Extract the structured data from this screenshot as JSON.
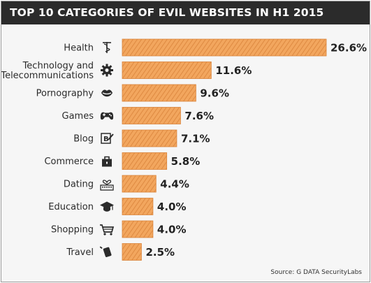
{
  "title": "TOP 10 CATEGORIES OF EVIL WEBSITES IN H1 2015",
  "source": "Source: G DATA SecurityLabs",
  "colors": {
    "bar": "#f2a65e",
    "hatch": "#d9833a",
    "icon": "#2b2b2b",
    "title_bg": "#2b2b2b"
  },
  "chart_data": {
    "type": "bar",
    "orientation": "horizontal",
    "title": "TOP 10 CATEGORIES OF EVIL WEBSITES IN H1 2015",
    "categories": [
      "Health",
      "Technology and Telecommunications",
      "Pornography",
      "Games",
      "Blog",
      "Commerce",
      "Dating",
      "Education",
      "Shopping",
      "Travel"
    ],
    "category_lines": [
      [
        "Health"
      ],
      [
        "Technology and",
        "Telecommunications"
      ],
      [
        "Pornography"
      ],
      [
        "Games"
      ],
      [
        "Blog"
      ],
      [
        "Commerce"
      ],
      [
        "Dating"
      ],
      [
        "Education"
      ],
      [
        "Shopping"
      ],
      [
        "Travel"
      ]
    ],
    "values": [
      26.6,
      11.6,
      9.6,
      7.6,
      7.1,
      5.8,
      4.4,
      4.0,
      4.0,
      2.5
    ],
    "value_labels": [
      "26.6%",
      "11.6%",
      "9.6%",
      "7.6%",
      "7.1%",
      "5.8%",
      "4.4%",
      "4.0%",
      "4.0%",
      "2.5%"
    ],
    "icons": [
      "caduceus-icon",
      "gear-icon",
      "lips-icon",
      "gamepad-icon",
      "blog-icon",
      "shopping-bag-icon",
      "keyboard-heart-icon",
      "graduation-cap-icon",
      "shopping-cart-icon",
      "suitcase-icon"
    ],
    "xlim": [
      0,
      26.6
    ],
    "grid": false,
    "legend": "none"
  }
}
